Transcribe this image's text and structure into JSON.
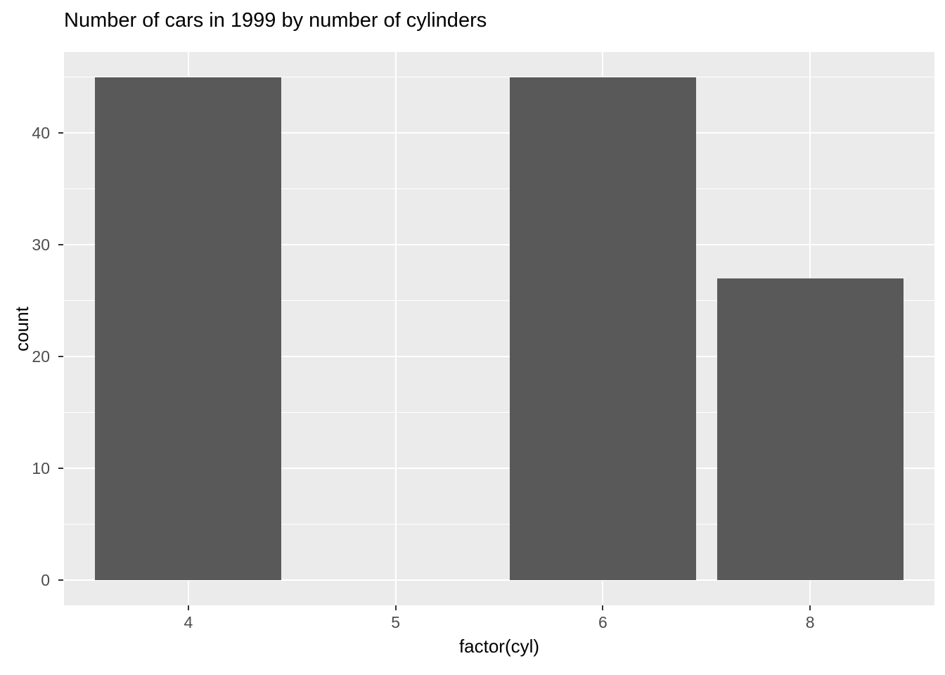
{
  "title": "Number of cars in 1999 by number of cylinders",
  "chart_data": {
    "type": "bar",
    "title": "Number of cars in 1999 by number of cylinders",
    "categories": [
      "4",
      "5",
      "6",
      "8"
    ],
    "values": [
      45,
      0,
      45,
      27
    ],
    "xlabel": "factor(cyl)",
    "ylabel": "count",
    "y_ticks": [
      0,
      10,
      20,
      30,
      40
    ],
    "y_minor_ticks": [
      5,
      15,
      25,
      35,
      45
    ],
    "ylim": [
      -2.25,
      47.25
    ],
    "bar_width_fraction": 0.9,
    "x_band_expand": 0.6,
    "grid": "on",
    "legend": "none",
    "style": "ggplot2",
    "colors": {
      "bar_fill": "#595959",
      "panel_background": "#EBEBEB",
      "grid_major": "#FFFFFF",
      "grid_minor": "#FFFFFF",
      "axis_text": "#4D4D4D",
      "tick_mark": "#333333",
      "title_text": "#000000",
      "axis_title_text": "#000000",
      "page_background": "#FFFFFF"
    }
  }
}
